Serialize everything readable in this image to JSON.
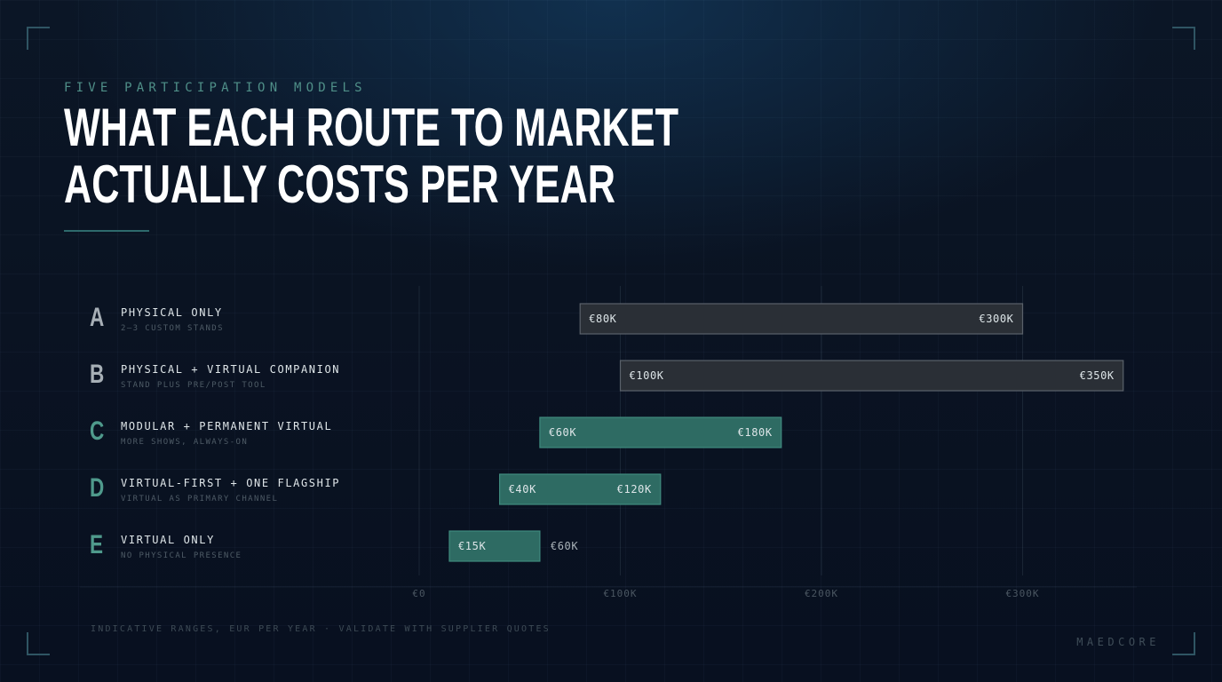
{
  "header": {
    "eyebrow": "FIVE PARTICIPATION MODELS",
    "title_line1": "WHAT EACH ROUTE TO MARKET",
    "title_line2": "ACTUALLY COSTS PER YEAR"
  },
  "rows": [
    {
      "letter": "A",
      "name": "PHYSICAL ONLY",
      "sub": "2–3 CUSTOM STANDS"
    },
    {
      "letter": "B",
      "name": "PHYSICAL + VIRTUAL COMPANION",
      "sub": "STAND PLUS PRE/POST TOOL"
    },
    {
      "letter": "C",
      "name": "MODULAR + PERMANENT VIRTUAL",
      "sub": "MORE SHOWS, ALWAYS-ON"
    },
    {
      "letter": "D",
      "name": "VIRTUAL-FIRST + ONE FLAGSHIP",
      "sub": "VIRTUAL AS PRIMARY CHANNEL"
    },
    {
      "letter": "E",
      "name": "VIRTUAL ONLY",
      "sub": "NO PHYSICAL PRESENCE"
    }
  ],
  "chart_data": {
    "type": "bar",
    "orientation": "horizontal-range",
    "unit": "EUR per year",
    "categories": [
      "A",
      "B",
      "C",
      "D",
      "E"
    ],
    "ranges": [
      {
        "low": 80000,
        "high": 300000,
        "low_label": "€80K",
        "high_label": "€300K",
        "style": "grey"
      },
      {
        "low": 100000,
        "high": 350000,
        "low_label": "€100K",
        "high_label": "€350K",
        "style": "grey"
      },
      {
        "low": 60000,
        "high": 180000,
        "low_label": "€60K",
        "high_label": "€180K",
        "style": "teal"
      },
      {
        "low": 40000,
        "high": 120000,
        "low_label": "€40K",
        "high_label": "€120K",
        "style": "teal"
      },
      {
        "low": 15000,
        "high": 60000,
        "low_label": "€15K",
        "high_label": "€60K",
        "style": "teal"
      }
    ],
    "xlim": [
      0,
      350000
    ],
    "xticks": [
      0,
      100000,
      200000,
      300000
    ],
    "xtick_labels": [
      "€0",
      "€100K",
      "€200K",
      "€300K"
    ],
    "grid": true,
    "colors": {
      "grey": "#2a2f36",
      "teal": "#2e6b63",
      "letter_grey": "#a7afb6",
      "letter_teal": "#4f9a8c"
    }
  },
  "footer": {
    "note": "INDICATIVE RANGES, EUR PER YEAR · VALIDATE WITH SUPPLIER QUOTES",
    "brand": "MAEDCORE"
  }
}
